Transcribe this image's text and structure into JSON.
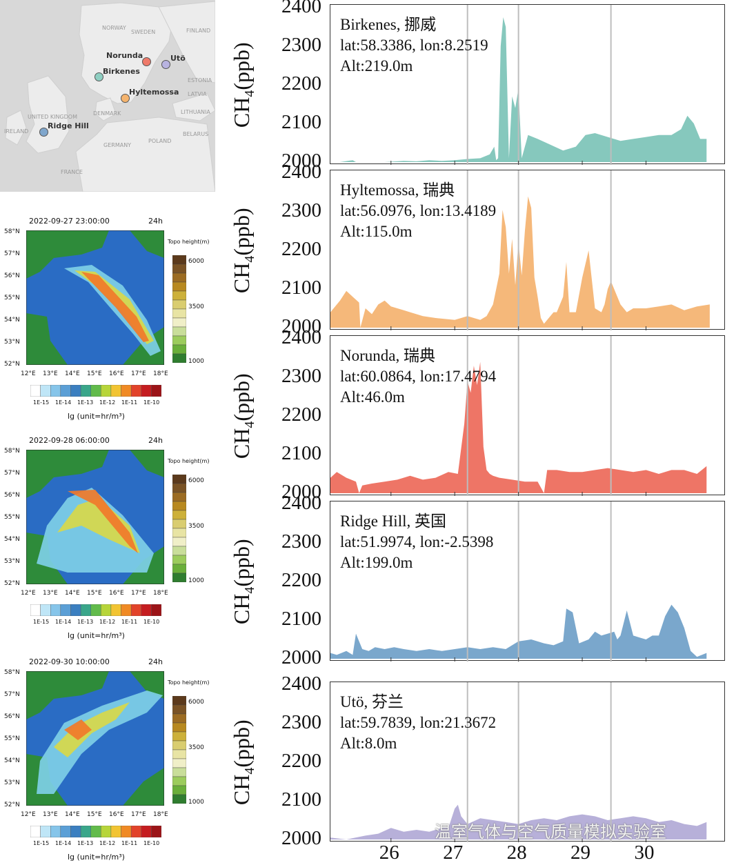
{
  "map": {
    "sites": [
      {
        "name": "Norunda",
        "color": "#ef7a6a"
      },
      {
        "name": "Utö",
        "color": "#b8b3e0"
      },
      {
        "name": "Birkenes",
        "color": "#8fcfc2"
      },
      {
        "name": "Hyltemossa",
        "color": "#f5b46e"
      },
      {
        "name": "Ridge Hill",
        "color": "#7fa6cc"
      }
    ],
    "place_labels": [
      "NORWAY",
      "SWEDEN",
      "FINLAND",
      "DENMARK",
      "UNITED KINGDOM",
      "IRELAND",
      "POLAND",
      "GERMANY",
      "BELARUS",
      "FRANCE",
      "ESTONIA",
      "LATVIA",
      "LITHUANIA"
    ]
  },
  "footprints": {
    "lat_ticks": [
      "58°N",
      "57°N",
      "56°N",
      "55°N",
      "54°N",
      "53°N",
      "52°N"
    ],
    "lon_ticks": [
      "12°E",
      "13°E",
      "14°E",
      "15°E",
      "16°E",
      "17°E",
      "18°E"
    ],
    "duration": "24h",
    "topo_title": "Topo height(m)",
    "topo_ticks": [
      "6000",
      "3500",
      "1000"
    ],
    "scale_ticks": [
      "1E-15",
      "1E-14",
      "1E-13",
      "1E-12",
      "1E-11",
      "1E-10"
    ],
    "unit_label": "lg (unit=hr/m³)",
    "panels": [
      {
        "time": "2022-09-27 23:00:00"
      },
      {
        "time": "2022-09-28 06:00:00"
      },
      {
        "time": "2022-09-30 10:00:00"
      }
    ],
    "colors": {
      "sea": "#2a6cc4",
      "land": "#2e8b3a",
      "topo": [
        "#5c3a1c",
        "#7a5325",
        "#9c6c22",
        "#b8891f",
        "#cdb13a",
        "#d9cd70",
        "#e8e4a4",
        "#f0efc8",
        "#c9de9a",
        "#9ccc5c",
        "#6aaf3a",
        "#2f7d2f"
      ],
      "scale": [
        "#ffffff",
        "#bfe6f7",
        "#86c5ea",
        "#5b9fd6",
        "#3b7fc0",
        "#3aa68a",
        "#62bb4b",
        "#b7d53a",
        "#f2c432",
        "#f08a24",
        "#e2432a",
        "#c51d20",
        "#9c1418"
      ]
    }
  },
  "chart_data": {
    "type": "area",
    "ylabel": "CH4(ppb)",
    "ylim": [
      2000,
      2400
    ],
    "yticks": [
      2000,
      2100,
      2200,
      2300,
      2400
    ],
    "xlim": [
      25.05,
      31.25
    ],
    "xticks": [
      26,
      27,
      28,
      29,
      30
    ],
    "xtick_labels": [
      "26",
      "27",
      "28",
      "29",
      "30"
    ],
    "vlines": [
      27.2,
      28.0,
      29.45
    ],
    "series": [
      {
        "name": "Birkenes, 挪威",
        "lat": "lat:58.3386, lon:8.2519",
        "alt": "Alt:219.0m",
        "color": "#86c8bd",
        "x": [
          25.05,
          25.2,
          25.4,
          25.45,
          25.9,
          26.2,
          26.4,
          26.6,
          26.8,
          27.0,
          27.2,
          27.4,
          27.55,
          27.62,
          27.65,
          27.68,
          27.72,
          27.76,
          27.8,
          27.85,
          27.9,
          27.95,
          28.0,
          28.05,
          28.15,
          28.3,
          28.5,
          28.7,
          28.9,
          29.05,
          29.2,
          29.4,
          29.6,
          29.8,
          30.0,
          30.2,
          30.4,
          30.55,
          30.65,
          30.75,
          30.85,
          30.95
        ],
        "y": [
          2000,
          2000,
          2005,
          2000,
          2000,
          2003,
          2002,
          2005,
          2003,
          2005,
          2008,
          2010,
          2020,
          2040,
          2005,
          2010,
          2300,
          2375,
          2350,
          2010,
          2170,
          2140,
          2190,
          2010,
          2070,
          2060,
          2045,
          2030,
          2040,
          2070,
          2075,
          2065,
          2055,
          2060,
          2065,
          2070,
          2070,
          2085,
          2120,
          2100,
          2060,
          2060
        ]
      },
      {
        "name": "Hyltemossa, 瑞典",
        "lat": "lat:56.0976, lon:13.4189",
        "alt": "Alt:115.0m",
        "color": "#f5b87a",
        "x": [
          25.05,
          25.2,
          25.3,
          25.4,
          25.5,
          25.52,
          25.6,
          25.7,
          25.8,
          25.9,
          26.0,
          26.1,
          26.2,
          26.3,
          26.5,
          26.7,
          27.0,
          27.2,
          27.4,
          27.5,
          27.6,
          27.7,
          27.75,
          27.8,
          27.85,
          27.9,
          27.95,
          28.0,
          28.05,
          28.1,
          28.15,
          28.2,
          28.25,
          28.3,
          28.35,
          28.4,
          28.5,
          28.55,
          28.6,
          28.7,
          28.75,
          28.8,
          28.85,
          28.9,
          29.0,
          29.1,
          29.2,
          29.3,
          29.35,
          29.4,
          29.45,
          29.5,
          29.6,
          29.7,
          29.8,
          30.0,
          30.2,
          30.4,
          30.6,
          30.8,
          31.0
        ],
        "y": [
          2040,
          2070,
          2095,
          2080,
          2065,
          2000,
          2050,
          2035,
          2060,
          2070,
          2055,
          2050,
          2045,
          2040,
          2030,
          2025,
          2020,
          2030,
          2020,
          2030,
          2060,
          2140,
          2305,
          2260,
          2140,
          2230,
          2110,
          2220,
          2135,
          2250,
          2340,
          2310,
          2130,
          2080,
          2025,
          2010,
          2030,
          2040,
          2040,
          2080,
          2170,
          2040,
          2040,
          2040,
          2130,
          2200,
          2050,
          2040,
          2060,
          2100,
          2120,
          2100,
          2060,
          2040,
          2050,
          2050,
          2055,
          2060,
          2045,
          2055,
          2060
        ]
      },
      {
        "name": "Norunda, 瑞典",
        "lat": "lat:60.0864, lon:17.4794",
        "alt": "Alt:46.0m",
        "color": "#ee7566",
        "x": [
          25.05,
          25.15,
          25.3,
          25.45,
          25.5,
          25.55,
          25.7,
          25.9,
          26.1,
          26.3,
          26.5,
          26.7,
          26.9,
          27.05,
          27.15,
          27.2,
          27.25,
          27.3,
          27.35,
          27.4,
          27.45,
          27.5,
          27.55,
          27.6,
          27.7,
          27.9,
          28.1,
          28.3,
          28.4,
          28.45,
          28.6,
          28.8,
          29.0,
          29.2,
          29.4,
          29.6,
          29.8,
          30.0,
          30.2,
          30.4,
          30.6,
          30.8,
          30.95
        ],
        "y": [
          2040,
          2055,
          2040,
          2030,
          2000,
          2020,
          2025,
          2030,
          2035,
          2045,
          2035,
          2040,
          2055,
          2050,
          2180,
          2290,
          2260,
          2330,
          2280,
          2340,
          2120,
          2060,
          2050,
          2045,
          2040,
          2035,
          2030,
          2030,
          2000,
          2060,
          2060,
          2055,
          2055,
          2060,
          2065,
          2060,
          2055,
          2060,
          2050,
          2060,
          2060,
          2050,
          2070
        ]
      },
      {
        "name": "Ridge Hill, 英国",
        "lat": "lat:51.9974, lon:-2.5398",
        "alt": "Alt:199.0m",
        "color": "#7aa7cc",
        "x": [
          25.05,
          25.15,
          25.3,
          25.4,
          25.45,
          25.55,
          25.65,
          25.75,
          25.9,
          26.05,
          26.2,
          26.4,
          26.6,
          26.8,
          27.0,
          27.2,
          27.4,
          27.6,
          27.8,
          28.0,
          28.2,
          28.4,
          28.55,
          28.7,
          28.75,
          28.85,
          28.95,
          29.1,
          29.2,
          29.3,
          29.4,
          29.5,
          29.55,
          29.6,
          29.7,
          29.8,
          29.9,
          30.0,
          30.1,
          30.2,
          30.3,
          30.4,
          30.5,
          30.6,
          30.7,
          30.8,
          30.95
        ],
        "y": [
          2015,
          2010,
          2020,
          2010,
          2065,
          2025,
          2020,
          2030,
          2025,
          2030,
          2025,
          2020,
          2025,
          2020,
          2025,
          2030,
          2025,
          2030,
          2025,
          2045,
          2050,
          2040,
          2035,
          2045,
          2130,
          2120,
          2040,
          2050,
          2070,
          2060,
          2065,
          2070,
          2050,
          2060,
          2125,
          2060,
          2055,
          2050,
          2060,
          2060,
          2110,
          2140,
          2120,
          2080,
          2020,
          2005,
          2015
        ]
      },
      {
        "name": "Utö, 芬兰",
        "lat": "lat:59.7839, lon:21.3672",
        "alt": "Alt:8.0m",
        "color": "#b7b0d9",
        "x": [
          25.05,
          25.3,
          25.6,
          25.8,
          26.0,
          26.2,
          26.4,
          26.6,
          26.8,
          26.9,
          27.0,
          27.05,
          27.1,
          27.2,
          27.4,
          27.6,
          27.8,
          28.0,
          28.2,
          28.4,
          28.6,
          28.8,
          29.0,
          29.2,
          29.4,
          29.6,
          29.8,
          30.0,
          30.2,
          30.4,
          30.6,
          30.8,
          30.95
        ],
        "y": [
          2005,
          2000,
          2010,
          2015,
          2030,
          2020,
          2025,
          2020,
          2030,
          2030,
          2080,
          2090,
          2060,
          2040,
          2055,
          2050,
          2045,
          2040,
          2050,
          2055,
          2050,
          2060,
          2065,
          2060,
          2050,
          2055,
          2060,
          2055,
          2045,
          2050,
          2040,
          2035,
          2045
        ]
      }
    ]
  },
  "watermark": "温室气体与空气质量模拟实验室"
}
